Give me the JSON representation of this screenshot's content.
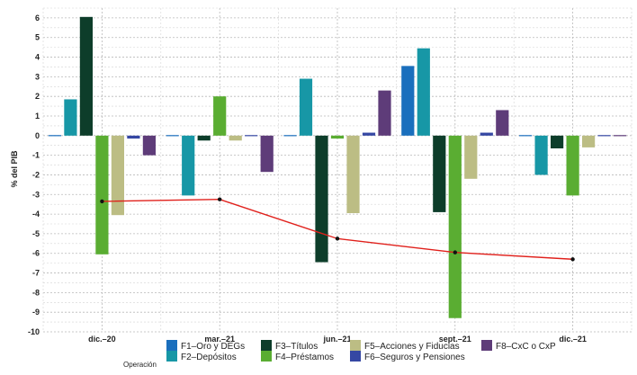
{
  "chart_data": {
    "type": "bar",
    "categories": [
      "dic.–20",
      "mar.–21",
      "jun.–21",
      "sept.–21",
      "dic.–21"
    ],
    "ylabel": "% del PIB",
    "ylim": [
      -10,
      6.5
    ],
    "yticks": [
      6,
      5,
      4,
      3,
      2,
      1,
      0,
      -1,
      -2,
      -3,
      -4,
      -5,
      -6,
      -7,
      -8,
      -9,
      -10
    ],
    "grid": true,
    "legend_title": "Operación",
    "legend_position": "bottom",
    "series": [
      {
        "name": "F1–Oro y DEGs",
        "color": "#1a6fbd",
        "values": [
          0.05,
          0.05,
          -0.05,
          3.55,
          0.05
        ]
      },
      {
        "name": "F2–Depósitos",
        "color": "#1797a6",
        "values": [
          1.85,
          -3.05,
          2.9,
          4.45,
          -2.0
        ]
      },
      {
        "name": "F3–Títulos",
        "color": "#0d3d2a",
        "values": [
          6.05,
          -0.25,
          -6.45,
          -3.9,
          -0.65
        ]
      },
      {
        "name": "F4–Préstamos",
        "color": "#5aad32",
        "values": [
          -6.05,
          2.0,
          -0.15,
          -9.3,
          -3.05
        ]
      },
      {
        "name": "F5–Acciones y Fiducias",
        "color": "#bcbd84",
        "values": [
          -4.05,
          -0.25,
          -3.95,
          -2.2,
          -0.6
        ]
      },
      {
        "name": "F6–Seguros y Pensiones",
        "color": "#3547a3",
        "values": [
          -0.15,
          0.05,
          0.15,
          0.15,
          0.05
        ]
      },
      {
        "name": "F8–CxC o CxP",
        "color": "#5e3c79",
        "values": [
          -1.0,
          -1.85,
          2.3,
          1.3,
          0.05
        ]
      }
    ],
    "line": {
      "color": "#e0201b",
      "values": [
        -3.35,
        -3.25,
        -5.25,
        -5.95,
        -6.3
      ]
    }
  }
}
